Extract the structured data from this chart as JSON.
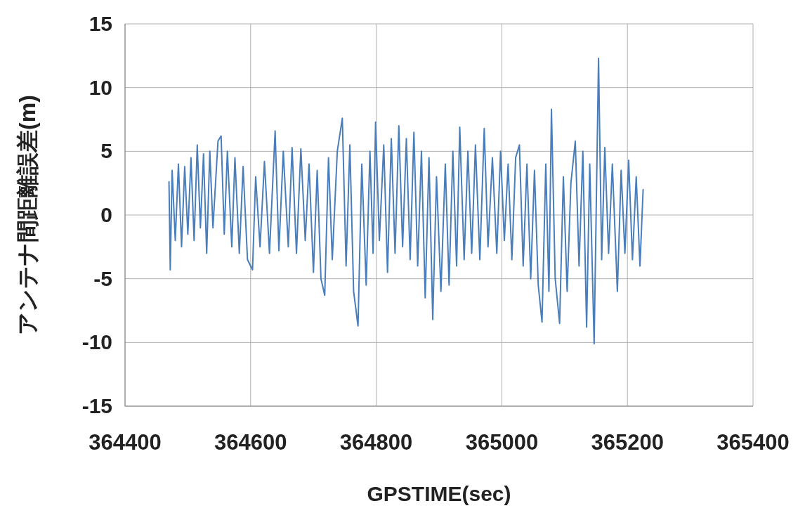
{
  "chart_data": {
    "type": "line",
    "xlabel": "GPSTIME(sec)",
    "ylabel": "アンテナ間距離誤差(m)",
    "xlim": [
      364400,
      365400
    ],
    "xticks": [
      364400,
      364600,
      364800,
      365000,
      365200,
      365400
    ],
    "ylim": [
      -15,
      15
    ],
    "yticks": [
      -15,
      -10,
      -5,
      0,
      5,
      10,
      15
    ],
    "grid": true,
    "marker": "none",
    "line_style": "solid",
    "series": [
      {
        "color": "#4a7ebb",
        "x": [
          364470,
          364472,
          364475,
          364480,
          364485,
          364490,
          364495,
          364500,
          364505,
          364510,
          364515,
          364520,
          364525,
          364530,
          364535,
          364540,
          364548,
          364553,
          364558,
          364563,
          364570,
          364575,
          364582,
          364588,
          364595,
          364603,
          364608,
          364615,
          364622,
          364630,
          364639,
          364645,
          364652,
          364660,
          364666,
          364673,
          364680,
          364687,
          364693,
          364700,
          364706,
          364712,
          364718,
          364724,
          364730,
          364738,
          364746,
          364752,
          364758,
          364764,
          364771,
          364777,
          364784,
          364790,
          364795,
          364799,
          364805,
          364812,
          364818,
          364824,
          364830,
          364836,
          364842,
          364848,
          364854,
          364860,
          364866,
          364872,
          364878,
          364884,
          364890,
          364896,
          364903,
          364910,
          364916,
          364922,
          364928,
          364933,
          364940,
          364946,
          364952,
          364958,
          364965,
          364972,
          364978,
          364985,
          364992,
          364998,
          365004,
          365010,
          365016,
          365022,
          365028,
          365034,
          365040,
          365046,
          365052,
          365058,
          365064,
          365070,
          365075,
          365079,
          365085,
          365092,
          365098,
          365104,
          365110,
          365117,
          365123,
          365129,
          365135,
          365140,
          365147,
          365154,
          365159,
          365164,
          365170,
          365176,
          365184,
          365190,
          365196,
          365202,
          365208,
          365214,
          365220,
          365225
        ],
        "values": [
          2.6,
          -4.3,
          3.5,
          -2.0,
          4.0,
          -2.5,
          3.8,
          -1.5,
          4.5,
          -2.0,
          5.5,
          -1.0,
          4.8,
          -3.0,
          5.0,
          -1.0,
          5.8,
          6.2,
          -1.5,
          5.0,
          -2.5,
          4.5,
          -3.0,
          3.8,
          -3.5,
          -4.3,
          3.0,
          -2.5,
          4.2,
          -3.0,
          6.6,
          -2.8,
          5.0,
          -2.5,
          5.3,
          -3.0,
          5.2,
          -2.0,
          4.0,
          -4.5,
          3.5,
          -5.0,
          -6.3,
          4.5,
          -3.5,
          5.0,
          7.6,
          -4.0,
          5.5,
          -6.0,
          -8.7,
          4.0,
          -5.5,
          5.0,
          -3.0,
          7.3,
          -2.0,
          5.5,
          -4.5,
          6.0,
          -3.0,
          7.0,
          -2.5,
          6.0,
          -3.5,
          6.5,
          -4.0,
          5.0,
          -6.5,
          4.5,
          -8.2,
          3.0,
          -6.0,
          4.0,
          -5.5,
          5.0,
          -4.0,
          6.9,
          -3.5,
          5.0,
          -3.0,
          5.5,
          -3.5,
          6.8,
          -2.5,
          4.5,
          -3.0,
          5.0,
          -2.0,
          4.0,
          -3.5,
          4.5,
          5.5,
          -4.0,
          4.0,
          -5.0,
          3.5,
          -5.5,
          -8.4,
          4.0,
          -6.0,
          8.3,
          -5.0,
          -8.5,
          3.0,
          -6.0,
          2.5,
          5.8,
          -4.0,
          5.0,
          -8.8,
          4.0,
          -10.1,
          12.3,
          -3.5,
          5.3,
          -3.0,
          4.0,
          -6.0,
          3.5,
          -3.0,
          4.3,
          -3.5,
          3.0,
          -4.0,
          2.0
        ]
      }
    ]
  }
}
